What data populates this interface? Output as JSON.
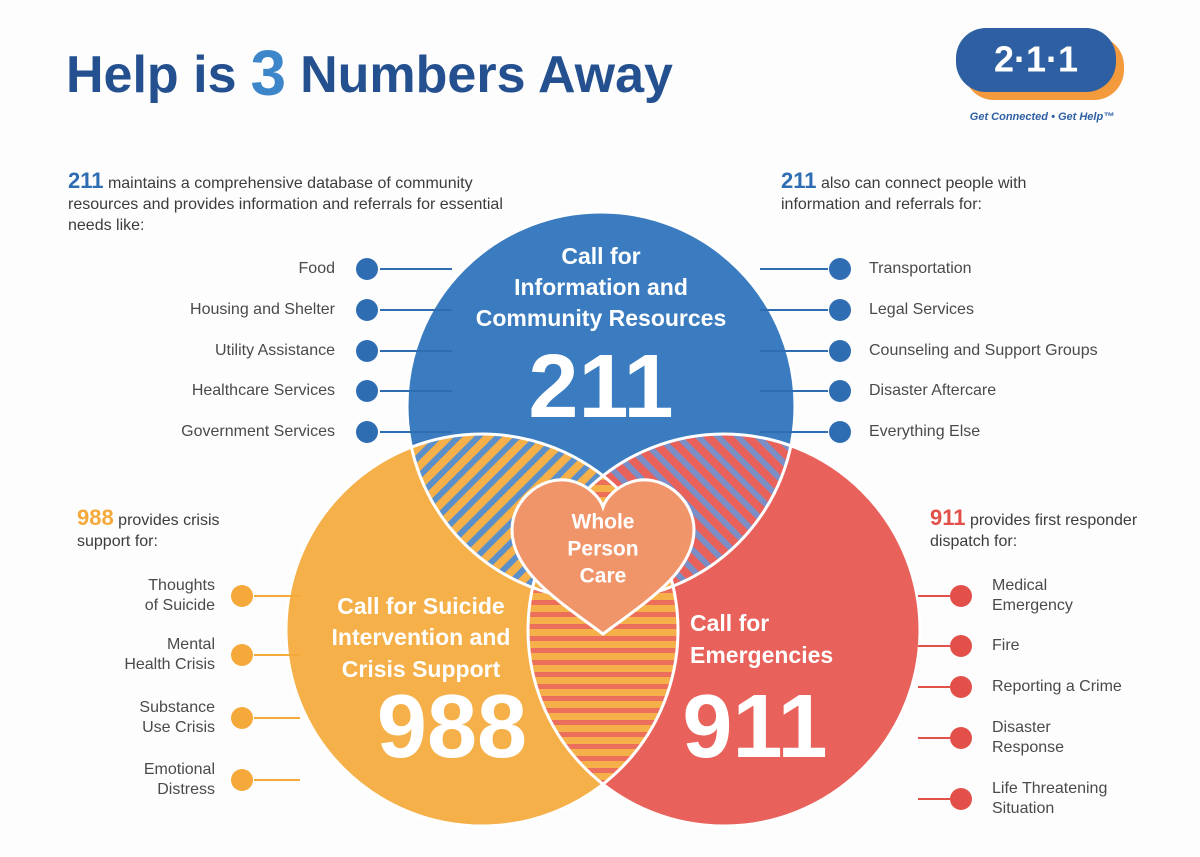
{
  "header": {
    "title_before": "Help is",
    "title_number": "3",
    "title_after": "Numbers Away"
  },
  "logo": {
    "number": "2·1·1",
    "tagline": "Get Connected • Get Help™"
  },
  "circles": [
    {
      "title_lines": [
        "Call for",
        "Information and",
        "Community Resources"
      ],
      "number": "211"
    },
    {
      "title_lines": [
        "Call for Suicide",
        "Intervention and",
        "Crisis Support"
      ],
      "number": "988"
    },
    {
      "title_lines": [
        "Call for",
        "Emergencies"
      ],
      "number": "911"
    }
  ],
  "center": {
    "lines": [
      "Whole",
      "Person",
      "Care"
    ]
  },
  "panels": [
    {
      "lead": "211",
      "intro": "maintains a comprehensive database of community resources and provides information and referrals for essential needs like:",
      "items": [
        [
          "Food"
        ],
        [
          "Housing and Shelter"
        ],
        [
          "Utility Assistance"
        ],
        [
          "Healthcare Services"
        ],
        [
          "Government Services"
        ]
      ]
    },
    {
      "lead": "211",
      "intro": "also can connect people with information and referrals for:",
      "items": [
        [
          "Transportation"
        ],
        [
          "Legal Services"
        ],
        [
          "Counseling and Support Groups"
        ],
        [
          "Disaster Aftercare"
        ],
        [
          "Everything Else"
        ]
      ]
    },
    {
      "lead": "988",
      "intro": "provides crisis support for:",
      "items": [
        [
          "Thoughts",
          "of Suicide"
        ],
        [
          "Mental",
          "Health Crisis"
        ],
        [
          "Substance",
          "Use Crisis"
        ],
        [
          "Emotional",
          "Distress"
        ]
      ]
    },
    {
      "lead": "911",
      "intro": "provides first responder dispatch for:",
      "items": [
        [
          "Medical",
          "Emergency"
        ],
        [
          "Fire"
        ],
        [
          "Reporting a Crime"
        ],
        [
          "Disaster",
          "Response"
        ],
        [
          "Life Threatening",
          "Situation"
        ]
      ]
    }
  ]
}
